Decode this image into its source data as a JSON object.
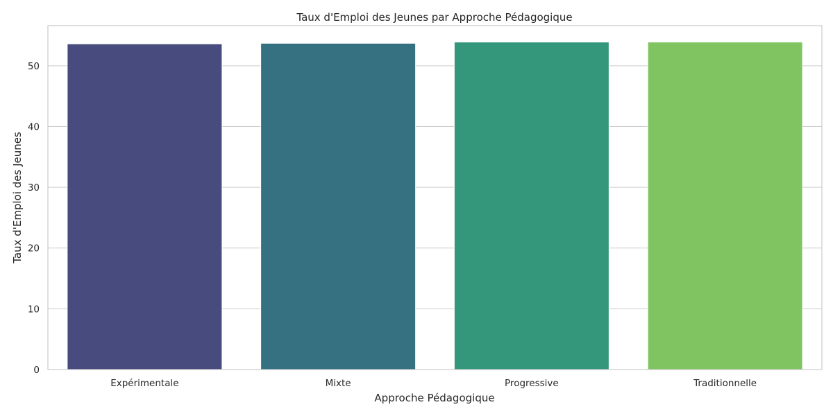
{
  "chart_data": {
    "type": "bar",
    "title": "Taux d'Emploi des Jeunes par Approche Pédagogique",
    "xlabel": "Approche Pédagogique",
    "ylabel": "Taux d'Emploi des Jeunes",
    "categories": [
      "Expérimentale",
      "Mixte",
      "Progressive",
      "Traditionnelle"
    ],
    "values": [
      53.6,
      53.7,
      53.9,
      53.9
    ],
    "colors": [
      "#484b7d",
      "#367181",
      "#34977c",
      "#80c462"
    ],
    "ylim": [
      0,
      56.6
    ],
    "yticks": [
      0,
      10,
      20,
      30,
      40,
      50
    ],
    "grid": true,
    "grid_axis": "y",
    "legend": false
  }
}
